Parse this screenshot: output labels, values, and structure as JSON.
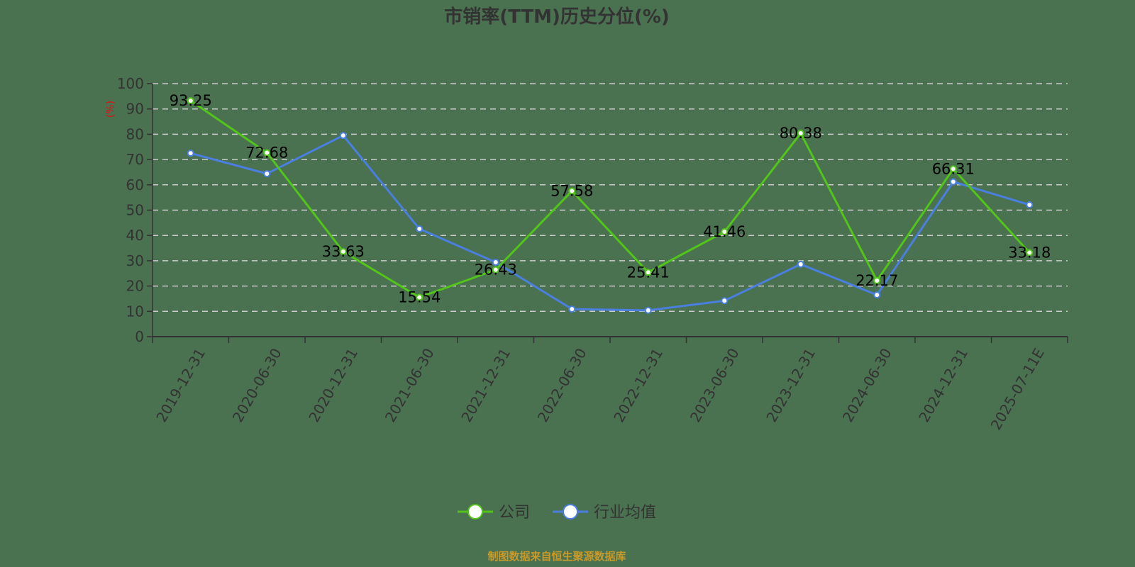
{
  "title": "市销率(TTM)历史分位(%)",
  "footer": "制图数据来自恒生聚源数据库",
  "colors": {
    "company": "#52c41a",
    "industry": "#4a7fe0",
    "grid": "#cccccc",
    "axis": "#333333",
    "unit": "#e01010",
    "footer": "#c89a2a",
    "background": "#4a7150"
  },
  "legend": [
    {
      "label": "公司",
      "color": "#52c41a"
    },
    {
      "label": "行业均值",
      "color": "#4a7fe0"
    }
  ],
  "chart_data": {
    "type": "line",
    "title": "市销率(TTM)历史分位(%)",
    "xlabel": "",
    "ylabel": "(%)",
    "ylim": [
      0,
      100
    ],
    "yticks": [
      0,
      10,
      20,
      30,
      40,
      50,
      60,
      70,
      80,
      90,
      100
    ],
    "grid": true,
    "legend_position": "bottom",
    "categories": [
      "2019-12-31",
      "2020-06-30",
      "2020-12-31",
      "2021-06-30",
      "2021-12-31",
      "2022-06-30",
      "2022-12-31",
      "2023-06-30",
      "2023-12-31",
      "2024-06-30",
      "2024-12-31",
      "2025-07-11E"
    ],
    "series": [
      {
        "name": "公司",
        "values": [
          93.25,
          72.68,
          33.63,
          15.54,
          26.43,
          57.58,
          25.41,
          41.46,
          80.38,
          22.17,
          66.31,
          33.18
        ],
        "labeled": true
      },
      {
        "name": "行业均值",
        "values": [
          72.5,
          64.4,
          79.5,
          42.6,
          29.4,
          10.9,
          10.4,
          14.2,
          28.6,
          16.5,
          61.2,
          52.1
        ],
        "labeled": false
      }
    ]
  }
}
